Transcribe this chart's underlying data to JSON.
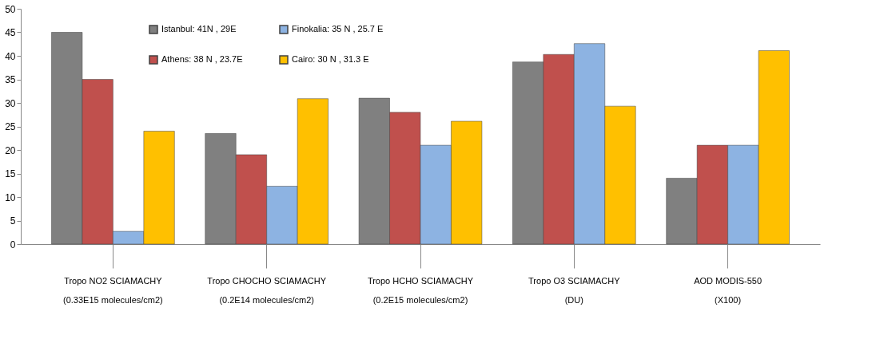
{
  "chart_data": {
    "type": "bar",
    "categories": [
      "Tropo NO2 SCIAMACHY\n(0.33E15 molecules/cm2)",
      "Tropo CHOCHO  SCIAMACHY\n(0.2E14 molecules/cm2)",
      "Tropo HCHO SCIAMACHY\n(0.2E15 molecules/cm2)",
      "Tropo O3 SCIAMACHY\n(DU)",
      "AOD MODIS-550\n(X100)"
    ],
    "series": [
      {
        "name": "Istanbul: 41N , 29E",
        "color": "#808080",
        "values": [
          45,
          23.5,
          31,
          38.7,
          14
        ]
      },
      {
        "name": "Athens:  38 N , 23.7E",
        "color": "#c0504d",
        "values": [
          35,
          19,
          28,
          40.3,
          21
        ]
      },
      {
        "name": "Finokalia: 35 N , 25.7 E",
        "color": "#8db3e2",
        "values": [
          2.7,
          12.3,
          21,
          42.6,
          21
        ]
      },
      {
        "name": "Cairo: 30 N , 31.3 E",
        "color": "#ffc000",
        "values": [
          24,
          30.9,
          26.1,
          29.3,
          41.1
        ]
      }
    ],
    "ylim": [
      0,
      50
    ],
    "yticks": [
      0,
      5,
      10,
      15,
      20,
      25,
      30,
      35,
      40,
      45,
      50
    ],
    "grid": false,
    "legend": "top left"
  }
}
